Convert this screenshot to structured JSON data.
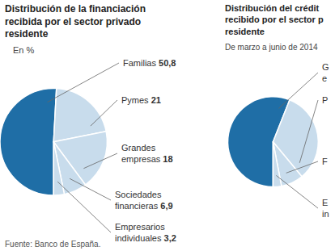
{
  "chart_data": [
    {
      "type": "pie",
      "title": "Distribución de la financiación recibida por el sector privado residente",
      "subtitle": "En %",
      "categories": [
        "Familias",
        "Pymes",
        "Grandes empresas",
        "Sociedades financieras",
        "Empresarios individuales"
      ],
      "values": [
        50.8,
        21,
        18,
        6.9,
        3.2
      ],
      "value_labels": [
        "50,8",
        "21",
        "18",
        "6,9",
        "3,2"
      ],
      "colors": [
        "#1f6ea6",
        "#c8dcec",
        "#c8dcec",
        "#c8dcec",
        "#c8dcec"
      ],
      "data_labels": true,
      "source": "Fuente: Banco de España."
    },
    {
      "type": "pie",
      "title": "Distribución del crédit recibido por el sector p residente",
      "subtitle": "De marzo a junio de 2014",
      "categories": [
        "G e",
        "P",
        "F",
        "E in"
      ],
      "values": [
        56,
        33,
        8,
        3
      ],
      "colors": [
        "#1f6ea6",
        "#c8dcec",
        "#c8dcec",
        "#c8dcec"
      ],
      "data_labels": false
    }
  ]
}
